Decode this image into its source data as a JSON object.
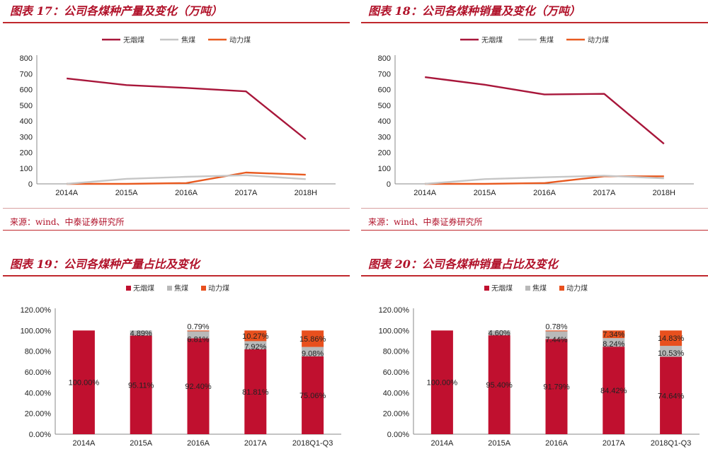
{
  "panels": [
    {
      "title": "图表 17：公司各煤种产量及变化（万吨）",
      "source": "来源：wind、中泰证券研究所",
      "chart_data": {
        "type": "line",
        "title": "图表 17：公司各煤种产量及变化（万吨）",
        "categories": [
          "2014A",
          "2015A",
          "2016A",
          "2017A",
          "2018H"
        ],
        "ylim": [
          0,
          800
        ],
        "yticks": [
          0,
          100,
          200,
          300,
          400,
          500,
          600,
          700,
          800
        ],
        "legend_position": "top",
        "series": [
          {
            "name": "无烟煤",
            "color": "#a8163a",
            "values": [
              670,
              628,
              610,
              588,
              283
            ]
          },
          {
            "name": "焦煤",
            "color": "#c6c6c6",
            "values": [
              0,
              32,
              45,
              55,
              30
            ]
          },
          {
            "name": "动力煤",
            "color": "#e85a20",
            "values": [
              0,
              0,
              5,
              72,
              58
            ]
          }
        ]
      }
    },
    {
      "title": "图表 18：公司各煤种销量及变化（万吨）",
      "source": "来源：wind、中泰证券研究所",
      "chart_data": {
        "type": "line",
        "title": "图表 18：公司各煤种销量及变化（万吨）",
        "categories": [
          "2014A",
          "2015A",
          "2016A",
          "2017A",
          "2018H"
        ],
        "ylim": [
          0,
          800
        ],
        "yticks": [
          0,
          100,
          200,
          300,
          400,
          500,
          600,
          700,
          800
        ],
        "legend_position": "top",
        "series": [
          {
            "name": "无烟煤",
            "color": "#a8163a",
            "values": [
              678,
              630,
              568,
              572,
              255
            ]
          },
          {
            "name": "焦煤",
            "color": "#c6c6c6",
            "values": [
              0,
              30,
              42,
              52,
              35
            ]
          },
          {
            "name": "动力煤",
            "color": "#e85a20",
            "values": [
              0,
              0,
              5,
              48,
              48
            ]
          }
        ]
      }
    },
    {
      "title": "图表 19：公司各煤种产量占比及变化",
      "chart_data": {
        "type": "bar",
        "stacked": true,
        "title": "图表 19：公司各煤种产量占比及变化",
        "categories": [
          "2014A",
          "2015A",
          "2016A",
          "2017A",
          "2018Q1-Q3"
        ],
        "ylim": [
          0,
          120
        ],
        "yticks": [
          "0.00%",
          "20.00%",
          "40.00%",
          "60.00%",
          "80.00%",
          "100.00%",
          "120.00%"
        ],
        "legend_position": "top",
        "series": [
          {
            "name": "无烟煤",
            "color": "#c0102f",
            "values": [
              100.0,
              95.11,
              92.4,
              81.81,
              75.06
            ],
            "labels": [
              "100.00%",
              "95.11%",
              "92.40%",
              "81.81%",
              "75.06%"
            ]
          },
          {
            "name": "焦煤",
            "color": "#b9b9b9",
            "values": [
              0,
              4.89,
              6.81,
              7.92,
              9.08
            ],
            "labels": [
              "",
              "4.89%",
              "6.81%",
              "7.92%",
              "9.08%"
            ]
          },
          {
            "name": "动力煤",
            "color": "#e8501e",
            "values": [
              0,
              0,
              0.79,
              10.27,
              15.86
            ],
            "labels": [
              "",
              "",
              "0.79%",
              "10.27%",
              "15.86%"
            ]
          }
        ]
      }
    },
    {
      "title": "图表 20：公司各煤种销量占比及变化",
      "chart_data": {
        "type": "bar",
        "stacked": true,
        "title": "图表 20：公司各煤种销量占比及变化",
        "categories": [
          "2014A",
          "2015A",
          "2016A",
          "2017A",
          "2018Q1-Q3"
        ],
        "ylim": [
          0,
          120
        ],
        "yticks": [
          "0.00%",
          "20.00%",
          "40.00%",
          "60.00%",
          "80.00%",
          "100.00%",
          "120.00%"
        ],
        "legend_position": "top",
        "series": [
          {
            "name": "无烟煤",
            "color": "#c0102f",
            "values": [
              100.0,
              95.4,
              91.79,
              84.42,
              74.64
            ],
            "labels": [
              "100.00%",
              "95.40%",
              "91.79%",
              "84.42%",
              "74.64%"
            ]
          },
          {
            "name": "焦煤",
            "color": "#b9b9b9",
            "values": [
              0,
              4.6,
              7.44,
              8.24,
              10.53
            ],
            "labels": [
              "",
              "4.60%",
              "7.44%",
              "8.24%",
              "10.53%"
            ]
          },
          {
            "name": "动力煤",
            "color": "#e8501e",
            "values": [
              0,
              0,
              0.78,
              7.34,
              14.83
            ],
            "labels": [
              "",
              "",
              "0.78%",
              "7.34%",
              "14.83%"
            ]
          }
        ]
      }
    }
  ]
}
